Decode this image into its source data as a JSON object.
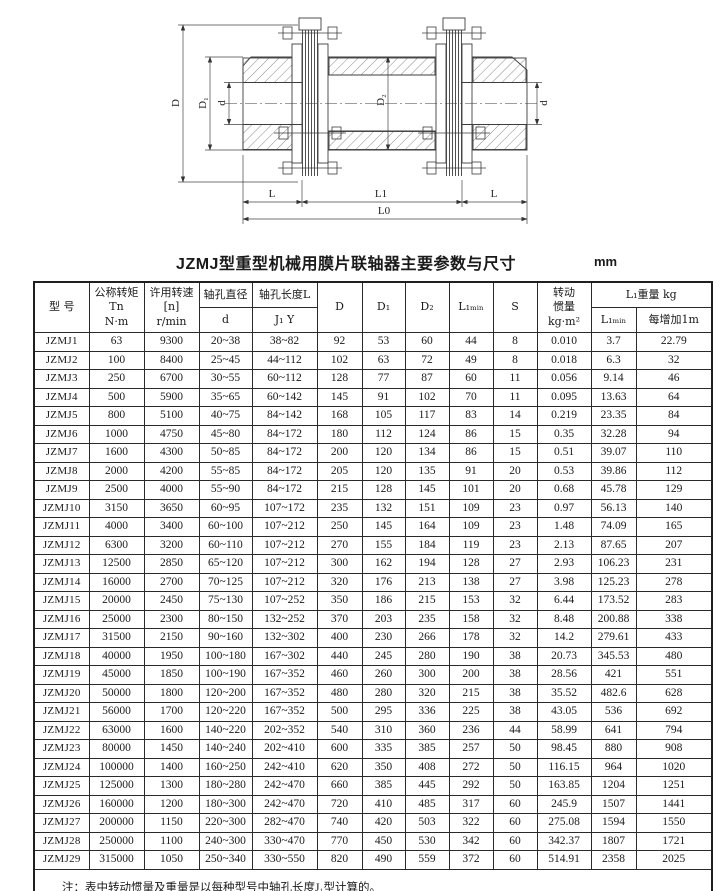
{
  "title": "JZMJ型重型机械用膜片联轴器主要参数与尺寸",
  "unit_label": "mm",
  "note": "注：表中转动惯量及重量是以每种型号中轴孔长度J₁型计算的。",
  "drawing": {
    "labels": {
      "D": "D",
      "D1": "D₁",
      "d_left": "d",
      "D2": "D₂",
      "d_right": "d",
      "L_left": "L",
      "L1": "L1",
      "L_right": "L",
      "L0": "L0"
    }
  },
  "table": {
    "headers": {
      "model": "型 号",
      "torque": "公称转矩\nTn\nN·m",
      "speed": "许用转速\n[n]\nr/min",
      "bore_dia": "轴孔直径",
      "bore_dia_sub": "d",
      "bore_len": "轴孔长度L",
      "bore_len_sub": "J₁  Y",
      "D": "D",
      "D1": "D₁",
      "D2": "D₂",
      "L1min": "L₁ₘᵢₙ",
      "S": "S",
      "inertia": "转动\n惯量\nkg·m²",
      "weight_group": "L₁重量  kg",
      "weight_L1min": "L₁ₘᵢₙ",
      "weight_per_m": "每增加1m"
    },
    "rows": [
      [
        "JZMJ1",
        "63",
        "9300",
        "20~38",
        "38~82",
        "92",
        "53",
        "60",
        "44",
        "8",
        "0.010",
        "3.7",
        "22.79"
      ],
      [
        "JZMJ2",
        "100",
        "8400",
        "25~45",
        "44~112",
        "102",
        "63",
        "72",
        "49",
        "8",
        "0.018",
        "6.3",
        "32"
      ],
      [
        "JZMJ3",
        "250",
        "6700",
        "30~55",
        "60~112",
        "128",
        "77",
        "87",
        "60",
        "11",
        "0.056",
        "9.14",
        "46"
      ],
      [
        "JZMJ4",
        "500",
        "5900",
        "35~65",
        "60~142",
        "145",
        "91",
        "102",
        "70",
        "11",
        "0.095",
        "13.63",
        "64"
      ],
      [
        "JZMJ5",
        "800",
        "5100",
        "40~75",
        "84~142",
        "168",
        "105",
        "117",
        "83",
        "14",
        "0.219",
        "23.35",
        "84"
      ],
      [
        "JZMJ6",
        "1000",
        "4750",
        "45~80",
        "84~172",
        "180",
        "112",
        "124",
        "86",
        "15",
        "0.35",
        "32.28",
        "94"
      ],
      [
        "JZMJ7",
        "1600",
        "4300",
        "50~85",
        "84~172",
        "200",
        "120",
        "134",
        "86",
        "15",
        "0.51",
        "39.07",
        "110"
      ],
      [
        "JZMJ8",
        "2000",
        "4200",
        "55~85",
        "84~172",
        "205",
        "120",
        "135",
        "91",
        "20",
        "0.53",
        "39.86",
        "112"
      ],
      [
        "JZMJ9",
        "2500",
        "4000",
        "55~90",
        "84~172",
        "215",
        "128",
        "145",
        "101",
        "20",
        "0.68",
        "45.78",
        "129"
      ],
      [
        "JZMJ10",
        "3150",
        "3650",
        "60~95",
        "107~172",
        "235",
        "132",
        "151",
        "109",
        "23",
        "0.97",
        "56.13",
        "140"
      ],
      [
        "JZMJ11",
        "4000",
        "3400",
        "60~100",
        "107~212",
        "250",
        "145",
        "164",
        "109",
        "23",
        "1.48",
        "74.09",
        "165"
      ],
      [
        "JZMJ12",
        "6300",
        "3200",
        "60~110",
        "107~212",
        "270",
        "155",
        "184",
        "119",
        "23",
        "2.13",
        "87.65",
        "207"
      ],
      [
        "JZMJ13",
        "12500",
        "2850",
        "65~120",
        "107~212",
        "300",
        "162",
        "194",
        "128",
        "27",
        "2.93",
        "106.23",
        "231"
      ],
      [
        "JZMJ14",
        "16000",
        "2700",
        "70~125",
        "107~212",
        "320",
        "176",
        "213",
        "138",
        "27",
        "3.98",
        "125.23",
        "278"
      ],
      [
        "JZMJ15",
        "20000",
        "2450",
        "75~130",
        "107~252",
        "350",
        "186",
        "215",
        "153",
        "32",
        "6.44",
        "173.52",
        "283"
      ],
      [
        "JZMJ16",
        "25000",
        "2300",
        "80~150",
        "132~252",
        "370",
        "203",
        "235",
        "158",
        "32",
        "8.48",
        "200.88",
        "338"
      ],
      [
        "JZMJ17",
        "31500",
        "2150",
        "90~160",
        "132~302",
        "400",
        "230",
        "266",
        "178",
        "32",
        "14.2",
        "279.61",
        "433"
      ],
      [
        "JZMJ18",
        "40000",
        "1950",
        "100~180",
        "167~302",
        "440",
        "245",
        "280",
        "190",
        "38",
        "20.73",
        "345.53",
        "480"
      ],
      [
        "JZMJ19",
        "45000",
        "1850",
        "100~190",
        "167~352",
        "460",
        "260",
        "300",
        "200",
        "38",
        "28.56",
        "421",
        "551"
      ],
      [
        "JZMJ20",
        "50000",
        "1800",
        "120~200",
        "167~352",
        "480",
        "280",
        "320",
        "215",
        "38",
        "35.52",
        "482.6",
        "628"
      ],
      [
        "JZMJ21",
        "56000",
        "1700",
        "120~220",
        "167~352",
        "500",
        "295",
        "336",
        "225",
        "38",
        "43.05",
        "536",
        "692"
      ],
      [
        "JZMJ22",
        "63000",
        "1600",
        "140~220",
        "202~352",
        "540",
        "310",
        "360",
        "236",
        "44",
        "58.99",
        "641",
        "794"
      ],
      [
        "JZMJ23",
        "80000",
        "1450",
        "140~240",
        "202~410",
        "600",
        "335",
        "385",
        "257",
        "50",
        "98.45",
        "880",
        "908"
      ],
      [
        "JZMJ24",
        "100000",
        "1400",
        "160~250",
        "242~410",
        "620",
        "350",
        "408",
        "272",
        "50",
        "116.15",
        "964",
        "1020"
      ],
      [
        "JZMJ25",
        "125000",
        "1300",
        "180~280",
        "242~470",
        "660",
        "385",
        "445",
        "292",
        "50",
        "163.85",
        "1204",
        "1251"
      ],
      [
        "JZMJ26",
        "160000",
        "1200",
        "180~300",
        "242~470",
        "720",
        "410",
        "485",
        "317",
        "60",
        "245.9",
        "1507",
        "1441"
      ],
      [
        "JZMJ27",
        "200000",
        "1150",
        "220~300",
        "282~470",
        "740",
        "420",
        "503",
        "322",
        "60",
        "275.08",
        "1594",
        "1550"
      ],
      [
        "JZMJ28",
        "250000",
        "1100",
        "240~300",
        "330~470",
        "770",
        "450",
        "530",
        "342",
        "60",
        "342.37",
        "1807",
        "1721"
      ],
      [
        "JZMJ29",
        "315000",
        "1050",
        "250~340",
        "330~550",
        "820",
        "490",
        "559",
        "372",
        "60",
        "514.91",
        "2358",
        "2025"
      ]
    ]
  }
}
